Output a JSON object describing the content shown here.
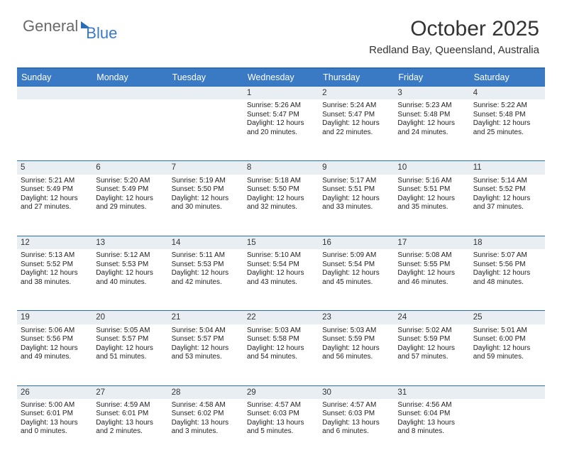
{
  "header": {
    "logo_general": "General",
    "logo_blue": "Blue",
    "title": "October 2025",
    "location": "Redland Bay, Queensland, Australia"
  },
  "style": {
    "accent_color": "#3a7ac4",
    "border_color": "#2a6db5",
    "daynum_bg": "#e9eef2",
    "text_color": "#333333",
    "body_text_color": "#222222",
    "header_fontsize": 30,
    "subtitle_fontsize": 15,
    "dayname_fontsize": 12.5,
    "cell_fontsize": 10
  },
  "calendar": {
    "day_names": [
      "Sunday",
      "Monday",
      "Tuesday",
      "Wednesday",
      "Thursday",
      "Friday",
      "Saturday"
    ],
    "weeks": [
      [
        null,
        null,
        null,
        {
          "n": "1",
          "sr": "5:26 AM",
          "ss": "5:47 PM",
          "dl": "12 hours and 20 minutes."
        },
        {
          "n": "2",
          "sr": "5:24 AM",
          "ss": "5:47 PM",
          "dl": "12 hours and 22 minutes."
        },
        {
          "n": "3",
          "sr": "5:23 AM",
          "ss": "5:48 PM",
          "dl": "12 hours and 24 minutes."
        },
        {
          "n": "4",
          "sr": "5:22 AM",
          "ss": "5:48 PM",
          "dl": "12 hours and 25 minutes."
        }
      ],
      [
        {
          "n": "5",
          "sr": "5:21 AM",
          "ss": "5:49 PM",
          "dl": "12 hours and 27 minutes."
        },
        {
          "n": "6",
          "sr": "5:20 AM",
          "ss": "5:49 PM",
          "dl": "12 hours and 29 minutes."
        },
        {
          "n": "7",
          "sr": "5:19 AM",
          "ss": "5:50 PM",
          "dl": "12 hours and 30 minutes."
        },
        {
          "n": "8",
          "sr": "5:18 AM",
          "ss": "5:50 PM",
          "dl": "12 hours and 32 minutes."
        },
        {
          "n": "9",
          "sr": "5:17 AM",
          "ss": "5:51 PM",
          "dl": "12 hours and 33 minutes."
        },
        {
          "n": "10",
          "sr": "5:16 AM",
          "ss": "5:51 PM",
          "dl": "12 hours and 35 minutes."
        },
        {
          "n": "11",
          "sr": "5:14 AM",
          "ss": "5:52 PM",
          "dl": "12 hours and 37 minutes."
        }
      ],
      [
        {
          "n": "12",
          "sr": "5:13 AM",
          "ss": "5:52 PM",
          "dl": "12 hours and 38 minutes."
        },
        {
          "n": "13",
          "sr": "5:12 AM",
          "ss": "5:53 PM",
          "dl": "12 hours and 40 minutes."
        },
        {
          "n": "14",
          "sr": "5:11 AM",
          "ss": "5:53 PM",
          "dl": "12 hours and 42 minutes."
        },
        {
          "n": "15",
          "sr": "5:10 AM",
          "ss": "5:54 PM",
          "dl": "12 hours and 43 minutes."
        },
        {
          "n": "16",
          "sr": "5:09 AM",
          "ss": "5:54 PM",
          "dl": "12 hours and 45 minutes."
        },
        {
          "n": "17",
          "sr": "5:08 AM",
          "ss": "5:55 PM",
          "dl": "12 hours and 46 minutes."
        },
        {
          "n": "18",
          "sr": "5:07 AM",
          "ss": "5:56 PM",
          "dl": "12 hours and 48 minutes."
        }
      ],
      [
        {
          "n": "19",
          "sr": "5:06 AM",
          "ss": "5:56 PM",
          "dl": "12 hours and 49 minutes."
        },
        {
          "n": "20",
          "sr": "5:05 AM",
          "ss": "5:57 PM",
          "dl": "12 hours and 51 minutes."
        },
        {
          "n": "21",
          "sr": "5:04 AM",
          "ss": "5:57 PM",
          "dl": "12 hours and 53 minutes."
        },
        {
          "n": "22",
          "sr": "5:03 AM",
          "ss": "5:58 PM",
          "dl": "12 hours and 54 minutes."
        },
        {
          "n": "23",
          "sr": "5:03 AM",
          "ss": "5:59 PM",
          "dl": "12 hours and 56 minutes."
        },
        {
          "n": "24",
          "sr": "5:02 AM",
          "ss": "5:59 PM",
          "dl": "12 hours and 57 minutes."
        },
        {
          "n": "25",
          "sr": "5:01 AM",
          "ss": "6:00 PM",
          "dl": "12 hours and 59 minutes."
        }
      ],
      [
        {
          "n": "26",
          "sr": "5:00 AM",
          "ss": "6:01 PM",
          "dl": "13 hours and 0 minutes."
        },
        {
          "n": "27",
          "sr": "4:59 AM",
          "ss": "6:01 PM",
          "dl": "13 hours and 2 minutes."
        },
        {
          "n": "28",
          "sr": "4:58 AM",
          "ss": "6:02 PM",
          "dl": "13 hours and 3 minutes."
        },
        {
          "n": "29",
          "sr": "4:57 AM",
          "ss": "6:03 PM",
          "dl": "13 hours and 5 minutes."
        },
        {
          "n": "30",
          "sr": "4:57 AM",
          "ss": "6:03 PM",
          "dl": "13 hours and 6 minutes."
        },
        {
          "n": "31",
          "sr": "4:56 AM",
          "ss": "6:04 PM",
          "dl": "13 hours and 8 minutes."
        },
        null
      ]
    ],
    "labels": {
      "sunrise": "Sunrise:",
      "sunset": "Sunset:",
      "daylight": "Daylight:"
    }
  }
}
